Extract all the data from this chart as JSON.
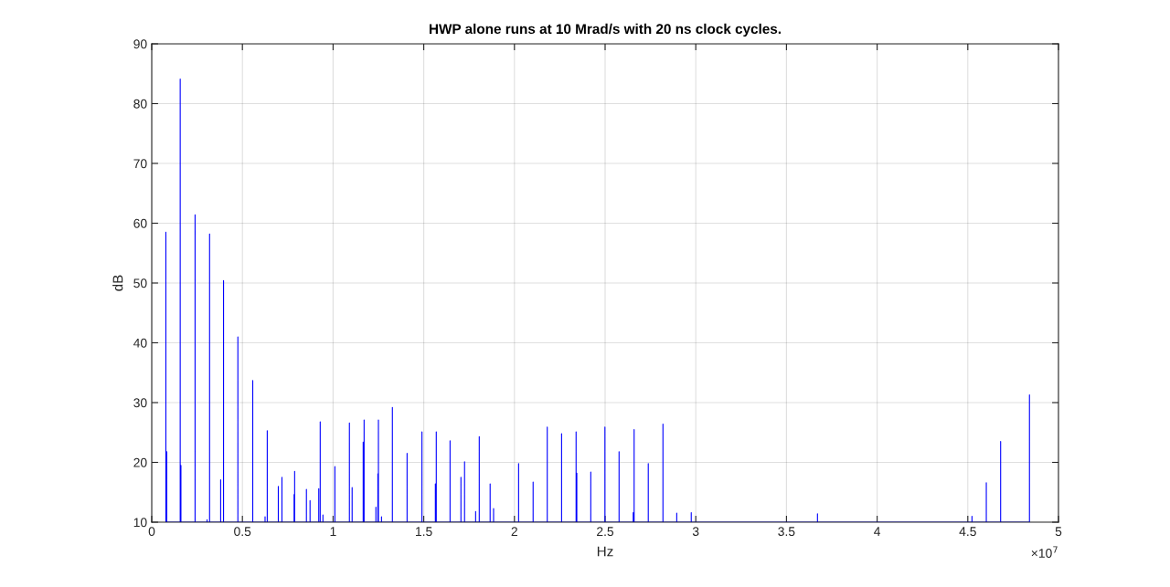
{
  "chart_data": {
    "type": "line",
    "title": "HWP alone runs at 10 Mrad/s with 20 ns clock cycles.",
    "xlabel": "Hz",
    "ylabel": "dB",
    "annotations": [
      "×10$^{7}$"
    ],
    "x": [
      0.078,
      0.078,
      0.078,
      0.083,
      0.083,
      0.083,
      0.157,
      0.157,
      0.157,
      0.161,
      0.161,
      0.161,
      0.239,
      0.239,
      0.239,
      0.305,
      0.305,
      0.305,
      0.319,
      0.319,
      0.319,
      0.38,
      0.38,
      0.38,
      0.396,
      0.396,
      0.396,
      0.475,
      0.475,
      0.475,
      0.557,
      0.557,
      0.557,
      0.625,
      0.625,
      0.625,
      0.637,
      0.637,
      0.637,
      0.698,
      0.698,
      0.698,
      0.718,
      0.718,
      0.718,
      0.785,
      0.785,
      0.785,
      0.788,
      0.788,
      0.788,
      0.853,
      0.853,
      0.853,
      0.873,
      0.873,
      0.873,
      0.921,
      0.921,
      0.921,
      0.929,
      0.929,
      0.929,
      0.944,
      0.944,
      0.944,
      1.01,
      1.01,
      1.01,
      1.09,
      1.09,
      1.09,
      1.105,
      1.105,
      1.105,
      1.166,
      1.166,
      1.166,
      1.171,
      1.171,
      1.171,
      1.236,
      1.236,
      1.236,
      1.247,
      1.247,
      1.247,
      1.25,
      1.25,
      1.25,
      1.267,
      1.267,
      1.267,
      1.327,
      1.327,
      1.327,
      1.408,
      1.408,
      1.408,
      1.49,
      1.49,
      1.49,
      1.564,
      1.564,
      1.564,
      1.569,
      1.569,
      1.569,
      1.645,
      1.645,
      1.645,
      1.705,
      1.705,
      1.705,
      1.725,
      1.725,
      1.725,
      1.786,
      1.786,
      1.786,
      1.806,
      1.806,
      1.806,
      1.866,
      1.866,
      1.866,
      1.885,
      1.885,
      1.885,
      2.023,
      2.023,
      2.023,
      2.103,
      2.103,
      2.103,
      2.181,
      2.181,
      2.181,
      2.26,
      2.26,
      2.26,
      2.34,
      2.34,
      2.34,
      2.344,
      2.344,
      2.344,
      2.421,
      2.421,
      2.421,
      2.499,
      2.499,
      2.499,
      2.577,
      2.577,
      2.577,
      2.655,
      2.655,
      2.655,
      2.66,
      2.66,
      2.66,
      2.738,
      2.738,
      2.738,
      2.819,
      2.819,
      2.819,
      2.895,
      2.895,
      2.895,
      2.975,
      2.975,
      2.975,
      3.671,
      3.671,
      3.671,
      4.523,
      4.523,
      4.523,
      4.602,
      4.602,
      4.602,
      4.681,
      4.681,
      4.681,
      4.84,
      4.84,
      4.84
    ],
    "series": [
      {
        "color": "#0000ff",
        "values": [
          10,
          58.5,
          10,
          10,
          21.8,
          10,
          10,
          84.1,
          10,
          10,
          19.5,
          10,
          10,
          61.4,
          10,
          10,
          10.4,
          10,
          10,
          58.2,
          10,
          10,
          17.1,
          10,
          10,
          50.4,
          10,
          10,
          41.0,
          10,
          10,
          33.7,
          10,
          10,
          10.9,
          10,
          10,
          25.3,
          10,
          10,
          16.0,
          10,
          10,
          17.5,
          10,
          10,
          14.6,
          10,
          10,
          18.5,
          10,
          10,
          15.5,
          10,
          10,
          13.6,
          10,
          10,
          15.6,
          10,
          10,
          26.8,
          10,
          10,
          11.2,
          10,
          10,
          19.3,
          10,
          10,
          26.6,
          10,
          10,
          15.8,
          10,
          10,
          23.4,
          10,
          10,
          27.1,
          10,
          10,
          12.5,
          10,
          10,
          18.1,
          10,
          10,
          27.1,
          10,
          10,
          10.9,
          10,
          10,
          29.2,
          10,
          10,
          21.5,
          10,
          10,
          25.1,
          10,
          10,
          16.4,
          10,
          10,
          25.1,
          10,
          10,
          23.6,
          10,
          10,
          17.5,
          10,
          10,
          20.1,
          10,
          10,
          11.8,
          10,
          10,
          24.3,
          10,
          10,
          16.4,
          10,
          10,
          12.3,
          10,
          10,
          19.8,
          10,
          10,
          16.7,
          10,
          10,
          25.9,
          10,
          10,
          24.8,
          10,
          10,
          25.1,
          10,
          10,
          18.2,
          10,
          10,
          18.4,
          10,
          10,
          25.9,
          10,
          10,
          21.8,
          10,
          10,
          11.6,
          10,
          10,
          25.5,
          10,
          10,
          19.8,
          10,
          10,
          26.4,
          10,
          10,
          11.5,
          10,
          10,
          11.6,
          10,
          10,
          11.4,
          10,
          10,
          11.0,
          10,
          10,
          16.6,
          10,
          10,
          23.5,
          10,
          10,
          31.3,
          10
        ]
      }
    ],
    "xlim": [
      0,
      5
    ],
    "xticks": [
      0,
      0.5,
      1,
      1.5,
      2,
      2.5,
      3,
      3.5,
      4,
      4.5,
      5
    ],
    "ylim": [
      10,
      90
    ],
    "yticks": [
      10,
      20,
      30,
      40,
      50,
      60,
      70,
      80,
      90
    ],
    "grid": true,
    "line_style": "solid"
  }
}
